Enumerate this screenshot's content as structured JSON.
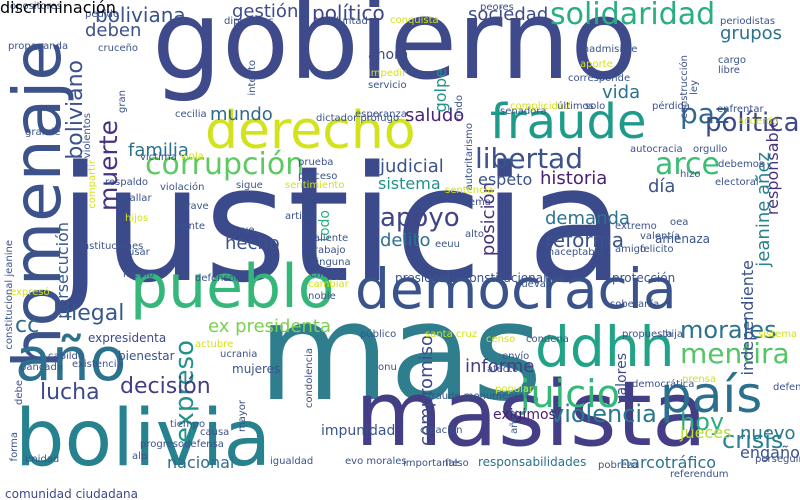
{
  "words": [
    {
      "text": "justicia",
      "color": "#3b4a8a"
    },
    {
      "text": "gobierno",
      "color": "#3e4a89"
    },
    {
      "text": "mas",
      "color": "#2e7e8e"
    },
    {
      "text": "masista",
      "color": "#433e85"
    },
    {
      "text": "bolivia",
      "color": "#26828e"
    },
    {
      "text": "democracia",
      "color": "#3a538b"
    },
    {
      "text": "pueblo",
      "color": "#35b779"
    },
    {
      "text": "homenaje",
      "color": "#3b528b"
    },
    {
      "text": "derecho",
      "color": "#d2e21b"
    },
    {
      "text": "fraude",
      "color": "#1e9b8a"
    },
    {
      "text": "año",
      "color": "#2c728e"
    },
    {
      "text": "país",
      "color": "#2d708e"
    },
    {
      "text": "ddhh",
      "color": "#20a386"
    },
    {
      "text": "corrupción",
      "color": "#5ec962"
    },
    {
      "text": "libertad",
      "color": "#3b528b"
    },
    {
      "text": "juicio",
      "color": "#35b779"
    },
    {
      "text": "solidaridad",
      "color": "#29af7f"
    },
    {
      "text": "boliviana",
      "color": "#3b528b"
    },
    {
      "text": "político",
      "color": "#3f4788"
    },
    {
      "text": "arce",
      "color": "#3dbc74"
    },
    {
      "text": "apoyo",
      "color": "#414487"
    },
    {
      "text": "paz",
      "color": "#31688e"
    },
    {
      "text": "política",
      "color": "#3e4989"
    },
    {
      "text": "expreso",
      "color": "#20928c"
    },
    {
      "text": "muerte",
      "color": "#46327e"
    },
    {
      "text": "boliviano",
      "color": "#3b528b"
    },
    {
      "text": "mentira",
      "color": "#55c667"
    },
    {
      "text": "violencia",
      "color": "#2a788e"
    },
    {
      "text": "crisis",
      "color": "#26828e"
    },
    {
      "text": "hoy",
      "color": "#29af7f"
    },
    {
      "text": "morales",
      "color": "#2c728e"
    },
    {
      "text": "lucha",
      "color": "#3e4989"
    },
    {
      "text": "decisión",
      "color": "#433e85"
    },
    {
      "text": "ilegal",
      "color": "#38598c"
    },
    {
      "text": "reforma",
      "color": "#3b528b"
    },
    {
      "text": "familia",
      "color": "#2c728e"
    },
    {
      "text": "historia",
      "color": "#481f70"
    },
    {
      "text": "sociedad",
      "color": "#3e4a89"
    },
    {
      "text": "gestión",
      "color": "#3e4a89"
    },
    {
      "text": "nuevo",
      "color": "#2a788e"
    },
    {
      "text": "informe",
      "color": "#433e85"
    },
    {
      "text": "judicial",
      "color": "#3b528b"
    },
    {
      "text": "delito",
      "color": "#2c728e"
    },
    {
      "text": "demanda",
      "color": "#2c728e"
    },
    {
      "text": "ex presidenta",
      "color": "#7ad151"
    },
    {
      "text": "vida",
      "color": "#2c728e"
    },
    {
      "text": "compromiso",
      "color": "#3e4a89"
    },
    {
      "text": "nacional",
      "color": "#2e6e8e"
    },
    {
      "text": "jeanine añez",
      "color": "#26828e"
    },
    {
      "text": "independiente",
      "color": "#3b528b"
    },
    {
      "text": "responsable",
      "color": "#46327e"
    },
    {
      "text": "grupos",
      "color": "#2c728e"
    },
    {
      "text": "persecución",
      "color": "#38598c"
    },
    {
      "text": "hecho",
      "color": "#3b528b"
    },
    {
      "text": "mundo",
      "color": "#31688e"
    },
    {
      "text": "saludo",
      "color": "#482576"
    },
    {
      "text": "golpe",
      "color": "#21918c"
    },
    {
      "text": "ahora",
      "color": "#3e4a89"
    },
    {
      "text": "narcotráfico",
      "color": "#2c728e"
    },
    {
      "text": "jueces",
      "color": "#b8de29"
    },
    {
      "text": "engaño",
      "color": "#3b528b"
    },
    {
      "text": "día",
      "color": "#3b528b"
    },
    {
      "text": "deben",
      "color": "#3b528b"
    },
    {
      "text": "cc",
      "color": "#31688e"
    },
    {
      "text": "posición",
      "color": "#46327e"
    },
    {
      "text": "sistema",
      "color": "#21918c"
    },
    {
      "text": "espeto",
      "color": "#3b528b"
    },
    {
      "text": "valores",
      "color": "#3e4a89"
    },
    {
      "text": "exigimos",
      "color": "#481f70"
    },
    {
      "text": "impunidad",
      "color": "#3b528b"
    },
    {
      "text": "protección",
      "color": "#3b528b"
    },
    {
      "text": "bienestar",
      "color": "#3b528b"
    },
    {
      "text": "expresidenta",
      "color": "#3e4a89"
    },
    {
      "text": "mujeres",
      "color": "#3b528b"
    },
    {
      "text": "comunidad ciudadana",
      "color": "#3e4a89"
    },
    {
      "text": "responsabilidades",
      "color": "#2c728e"
    },
    {
      "text": "presidenta constitucional",
      "color": "#3b528b"
    },
    {
      "text": "amenaza",
      "color": "#3b528b"
    },
    {
      "text": "acallar",
      "color": "#3b528b"
    },
    {
      "text": "opositores",
      "color": "#3b528b"
    },
    {
      "text": "pedido",
      "color": "#3b528b"
    },
    {
      "text": "todo",
      "color": "#29af7f"
    },
    {
      "text": "diputados",
      "color": "#3b528b"
    },
    {
      "text": "voluntad",
      "color": "#3b528b"
    },
    {
      "text": "conquista",
      "color": "#d2e21b"
    },
    {
      "text": "peores",
      "color": "#3b528b"
    },
    {
      "text": "periodistas",
      "color": "#3b528b"
    },
    {
      "text": "propaganda",
      "color": "#3b528b"
    },
    {
      "text": "crucеño",
      "color": "#3b528b"
    },
    {
      "text": "intento",
      "color": "#3b528b"
    },
    {
      "text": "usa",
      "color": "#3b528b"
    },
    {
      "text": "cecilia",
      "color": "#3b528b"
    },
    {
      "text": "impedir",
      "color": "#d2e21b"
    },
    {
      "text": "servicio",
      "color": "#3b528b"
    },
    {
      "text": "rindo",
      "color": "#3b528b"
    },
    {
      "text": "senadora",
      "color": "#3b528b"
    },
    {
      "text": "inadmisible",
      "color": "#3b528b"
    },
    {
      "text": "aporte",
      "color": "#d2e21b"
    },
    {
      "text": "corresponde",
      "color": "#3b528b"
    },
    {
      "text": "construcción",
      "color": "#3b528b"
    },
    {
      "text": "cargo",
      "color": "#3b528b"
    },
    {
      "text": "libre",
      "color": "#3b528b"
    },
    {
      "text": "enfrentar",
      "color": "#3b528b"
    },
    {
      "text": "acuerdo",
      "color": "#d2e21b"
    },
    {
      "text": "autocracia",
      "color": "#3b528b"
    },
    {
      "text": "orgullo",
      "color": "#3b528b"
    },
    {
      "text": "debemos",
      "color": "#3b528b"
    },
    {
      "text": "electoral",
      "color": "#3b528b"
    },
    {
      "text": "grande",
      "color": "#3b528b"
    },
    {
      "text": "víctima",
      "color": "#3b528b"
    },
    {
      "text": "viola",
      "color": "#d2e21b"
    },
    {
      "text": "respaldo",
      "color": "#3b528b"
    },
    {
      "text": "violación",
      "color": "#3b528b"
    },
    {
      "text": "sigue",
      "color": "#3b528b"
    },
    {
      "text": "sentimiento",
      "color": "#d2e21b"
    },
    {
      "text": "proceso",
      "color": "#3b528b"
    },
    {
      "text": "prueba",
      "color": "#3b528b"
    },
    {
      "text": "autoritarismo",
      "color": "#3b528b"
    },
    {
      "text": "sentencia",
      "color": "#d2e21b"
    },
    {
      "text": "tema",
      "color": "#3b528b"
    },
    {
      "text": "alto",
      "color": "#3b528b"
    },
    {
      "text": "extremo",
      "color": "#3b528b"
    },
    {
      "text": "valentía",
      "color": "#3b528b"
    },
    {
      "text": "felicito",
      "color": "#3b528b"
    },
    {
      "text": "amigo",
      "color": "#3b528b"
    },
    {
      "text": "inaceptable",
      "color": "#3b528b"
    },
    {
      "text": "oea",
      "color": "#3b528b"
    },
    {
      "text": "hijos",
      "color": "#d2e21b"
    },
    {
      "text": "grave",
      "color": "#3b528b"
    },
    {
      "text": "frente",
      "color": "#3b528b"
    },
    {
      "text": "artista",
      "color": "#3b528b"
    },
    {
      "text": "ue",
      "color": "#3b528b"
    },
    {
      "text": "valiente",
      "color": "#3b528b"
    },
    {
      "text": "trabajo",
      "color": "#3b528b"
    },
    {
      "text": "ninguna",
      "color": "#3b528b"
    },
    {
      "text": "choque",
      "color": "#3b528b"
    },
    {
      "text": "instituciones",
      "color": "#3b528b"
    },
    {
      "text": "usar",
      "color": "#3b528b"
    },
    {
      "text": "medio",
      "color": "#3b528b"
    },
    {
      "text": "defensor",
      "color": "#3b528b"
    },
    {
      "text": "cambiar",
      "color": "#d2e21b"
    },
    {
      "text": "noble",
      "color": "#3b528b"
    },
    {
      "text": "nueva",
      "color": "#3b528b"
    },
    {
      "text": "vez",
      "color": "#3b528b"
    },
    {
      "text": "soberanía",
      "color": "#3b528b"
    },
    {
      "text": "expresó",
      "color": "#d2e21b"
    },
    {
      "text": "público",
      "color": "#3b528b"
    },
    {
      "text": "santa cruz",
      "color": "#d2e21b"
    },
    {
      "text": "propuesta",
      "color": "#3b528b"
    },
    {
      "text": "hija",
      "color": "#3b528b"
    },
    {
      "text": "sistema judicial",
      "color": "#d2e21b"
    },
    {
      "text": "actubre",
      "color": "#d2e21b"
    },
    {
      "text": "ucrania",
      "color": "#3b528b"
    },
    {
      "text": "censo",
      "color": "#d2e21b"
    },
    {
      "text": "condena",
      "color": "#3b528b"
    },
    {
      "text": "envío",
      "color": "#3b528b"
    },
    {
      "text": "afecto",
      "color": "#3b528b"
    },
    {
      "text": "democrática",
      "color": "#3b528b"
    },
    {
      "text": "prensa",
      "color": "#d2e21b"
    },
    {
      "text": "defender",
      "color": "#3b528b"
    },
    {
      "text": "cabildo",
      "color": "#3b528b"
    },
    {
      "text": "bancada",
      "color": "#3b528b"
    },
    {
      "text": "debe",
      "color": "#3b528b"
    },
    {
      "text": "existencia",
      "color": "#3b528b"
    },
    {
      "text": "condolencia",
      "color": "#3b528b"
    },
    {
      "text": "fraude monumental",
      "color": "#3b528b"
    },
    {
      "text": "popular",
      "color": "#d2e21b"
    },
    {
      "text": "tiempo",
      "color": "#3b528b"
    },
    {
      "text": "causa",
      "color": "#3b528b"
    },
    {
      "text": "creación",
      "color": "#3b528b"
    },
    {
      "text": "progresodefensa",
      "color": "#3b528b"
    },
    {
      "text": "alp",
      "color": "#3b528b"
    },
    {
      "text": "unidad",
      "color": "#3b528b"
    },
    {
      "text": "referendum",
      "color": "#3b528b"
    },
    {
      "text": "perseguir",
      "color": "#3b528b"
    },
    {
      "text": "mayor",
      "color": "#3b528b"
    },
    {
      "text": "igualdad",
      "color": "#3b528b"
    },
    {
      "text": "evo morales",
      "color": "#3b528b"
    },
    {
      "text": "importante",
      "color": "#3b528b"
    },
    {
      "text": "falso",
      "color": "#3b528b"
    },
    {
      "text": "pobreza",
      "color": "#3b528b"
    },
    {
      "text": "forma",
      "color": "#3b528b"
    },
    {
      "text": "constitucional jeanine",
      "color": "#3b528b"
    },
    {
      "text": "complicidad",
      "color": "#d2e21b"
    },
    {
      "text": "últimos",
      "color": "#3b528b"
    },
    {
      "text": "solo",
      "color": "#3b528b"
    },
    {
      "text": "pérdida",
      "color": "#3b528b"
    },
    {
      "text": "ley",
      "color": "#3b528b"
    },
    {
      "text": "hizo",
      "color": "#3b528b"
    },
    {
      "text": "violentos",
      "color": "#3b528b"
    },
    {
      "text": "dictador prófugo",
      "color": "#3b528b"
    },
    {
      "text": "gran",
      "color": "#3b528b"
    },
    {
      "text": "esperanza",
      "color": "#3b528b"
    },
    {
      "text": "eeuu",
      "color": "#3b528b"
    },
    {
      "text": "onu",
      "color": "#3b528b"
    },
    {
      "text": "añez",
      "color": "#3b528b"
    },
    {
      "text": "compartir",
      "color": "#d2e21b"
    },
    {
      "text": "discriminación",
      "color": "#d2e21b"
    }
  ]
}
